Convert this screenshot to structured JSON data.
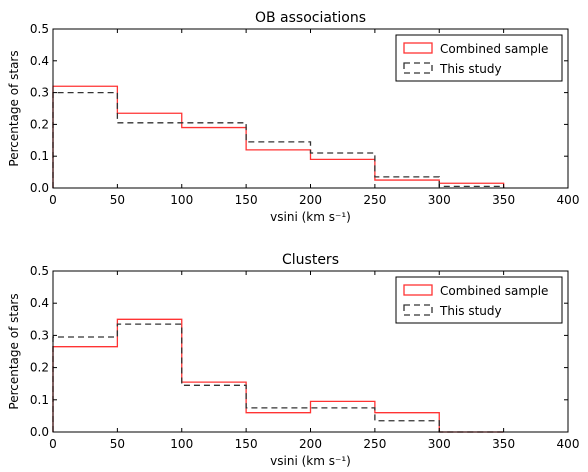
{
  "chart_data": [
    {
      "type": "histogram",
      "title": "OB associations",
      "xlabel": "vsini (km s⁻¹)",
      "ylabel": "Percentage of stars",
      "xlim": [
        0,
        400
      ],
      "ylim": [
        0,
        0.5
      ],
      "x_ticks": [
        "0",
        "50",
        "100",
        "150",
        "200",
        "250",
        "300",
        "350",
        "400"
      ],
      "y_ticks": [
        "0.0",
        "0.1",
        "0.2",
        "0.3",
        "0.4",
        "0.5"
      ],
      "bin_edges": [
        0,
        50,
        100,
        150,
        200,
        250,
        300,
        350
      ],
      "legend_position": "top-right",
      "series": [
        {
          "name": "Combined sample",
          "style": "solid",
          "color": "#ff3333",
          "values": [
            0.32,
            0.235,
            0.19,
            0.12,
            0.09,
            0.025,
            0.015
          ]
        },
        {
          "name": "This study",
          "style": "dashed",
          "color": "#333333",
          "values": [
            0.3,
            0.205,
            0.205,
            0.145,
            0.11,
            0.035,
            0.005
          ]
        }
      ]
    },
    {
      "type": "histogram",
      "title": "Clusters",
      "xlabel": "vsini (km s⁻¹)",
      "ylabel": "Percentage of stars",
      "xlim": [
        0,
        400
      ],
      "ylim": [
        0,
        0.5
      ],
      "x_ticks": [
        "0",
        "50",
        "100",
        "150",
        "200",
        "250",
        "300",
        "350",
        "400"
      ],
      "y_ticks": [
        "0.0",
        "0.1",
        "0.2",
        "0.3",
        "0.4",
        "0.5"
      ],
      "bin_edges": [
        0,
        50,
        100,
        150,
        200,
        250,
        300,
        350
      ],
      "legend_position": "top-right",
      "series": [
        {
          "name": "Combined sample",
          "style": "solid",
          "color": "#ff3333",
          "values": [
            0.265,
            0.35,
            0.155,
            0.06,
            0.095,
            0.06,
            0.0
          ]
        },
        {
          "name": "This study",
          "style": "dashed",
          "color": "#333333",
          "values": [
            0.295,
            0.335,
            0.145,
            0.075,
            0.075,
            0.035,
            0.0
          ]
        }
      ]
    }
  ]
}
